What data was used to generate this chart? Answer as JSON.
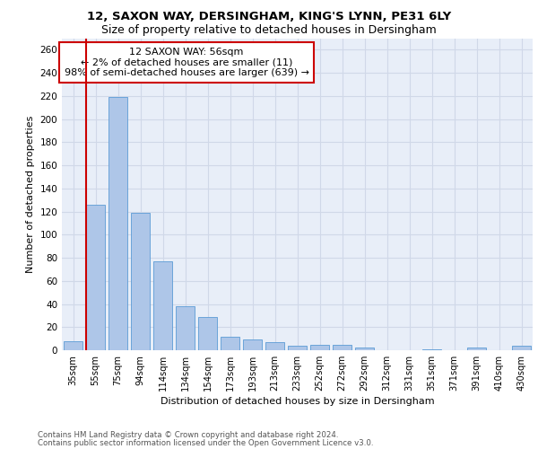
{
  "title1": "12, SAXON WAY, DERSINGHAM, KING'S LYNN, PE31 6LY",
  "title2": "Size of property relative to detached houses in Dersingham",
  "xlabel": "Distribution of detached houses by size in Dersingham",
  "ylabel": "Number of detached properties",
  "categories": [
    "35sqm",
    "55sqm",
    "75sqm",
    "94sqm",
    "114sqm",
    "134sqm",
    "154sqm",
    "173sqm",
    "193sqm",
    "213sqm",
    "233sqm",
    "252sqm",
    "272sqm",
    "292sqm",
    "312sqm",
    "331sqm",
    "351sqm",
    "371sqm",
    "391sqm",
    "410sqm",
    "430sqm"
  ],
  "values": [
    8,
    126,
    219,
    119,
    77,
    38,
    29,
    12,
    9,
    7,
    4,
    5,
    5,
    2,
    0,
    0,
    1,
    0,
    2,
    0,
    4
  ],
  "bar_color": "#aec6e8",
  "bar_edge_color": "#5b9bd5",
  "vline_color": "#cc0000",
  "annotation_text": "12 SAXON WAY: 56sqm\n← 2% of detached houses are smaller (11)\n98% of semi-detached houses are larger (639) →",
  "annotation_box_color": "#ffffff",
  "annotation_box_edge": "#cc0000",
  "ylim": [
    0,
    270
  ],
  "yticks": [
    0,
    20,
    40,
    60,
    80,
    100,
    120,
    140,
    160,
    180,
    200,
    220,
    240,
    260
  ],
  "grid_color": "#d0d8e8",
  "background_color": "#e8eef8",
  "footer1": "Contains HM Land Registry data © Crown copyright and database right 2024.",
  "footer2": "Contains public sector information licensed under the Open Government Licence v3.0."
}
